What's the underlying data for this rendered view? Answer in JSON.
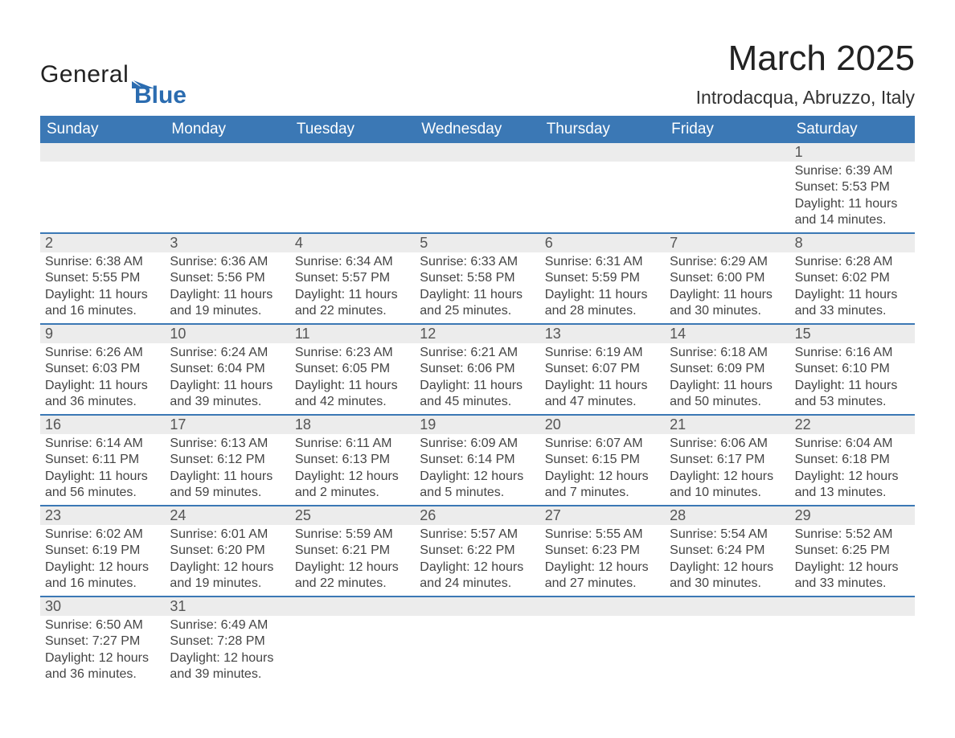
{
  "brand": {
    "word1": "General",
    "word2": "Blue",
    "flag_color": "#2b6cb0"
  },
  "title": "March 2025",
  "location": "Introdacqua, Abruzzo, Italy",
  "colors": {
    "header_bg": "#3b78b5",
    "header_text": "#ffffff",
    "daynum_bg": "#ececec",
    "row_border": "#3b78b5",
    "body_bg": "#ffffff",
    "text": "#333333",
    "brand_blue": "#2b6cb0"
  },
  "weekdays": [
    "Sunday",
    "Monday",
    "Tuesday",
    "Wednesday",
    "Thursday",
    "Friday",
    "Saturday"
  ],
  "weeks": [
    [
      {
        "num": "",
        "lines": []
      },
      {
        "num": "",
        "lines": []
      },
      {
        "num": "",
        "lines": []
      },
      {
        "num": "",
        "lines": []
      },
      {
        "num": "",
        "lines": []
      },
      {
        "num": "",
        "lines": []
      },
      {
        "num": "1",
        "lines": [
          "Sunrise: 6:39 AM",
          "Sunset: 5:53 PM",
          "Daylight: 11 hours",
          "and 14 minutes."
        ]
      }
    ],
    [
      {
        "num": "2",
        "lines": [
          "Sunrise: 6:38 AM",
          "Sunset: 5:55 PM",
          "Daylight: 11 hours",
          "and 16 minutes."
        ]
      },
      {
        "num": "3",
        "lines": [
          "Sunrise: 6:36 AM",
          "Sunset: 5:56 PM",
          "Daylight: 11 hours",
          "and 19 minutes."
        ]
      },
      {
        "num": "4",
        "lines": [
          "Sunrise: 6:34 AM",
          "Sunset: 5:57 PM",
          "Daylight: 11 hours",
          "and 22 minutes."
        ]
      },
      {
        "num": "5",
        "lines": [
          "Sunrise: 6:33 AM",
          "Sunset: 5:58 PM",
          "Daylight: 11 hours",
          "and 25 minutes."
        ]
      },
      {
        "num": "6",
        "lines": [
          "Sunrise: 6:31 AM",
          "Sunset: 5:59 PM",
          "Daylight: 11 hours",
          "and 28 minutes."
        ]
      },
      {
        "num": "7",
        "lines": [
          "Sunrise: 6:29 AM",
          "Sunset: 6:00 PM",
          "Daylight: 11 hours",
          "and 30 minutes."
        ]
      },
      {
        "num": "8",
        "lines": [
          "Sunrise: 6:28 AM",
          "Sunset: 6:02 PM",
          "Daylight: 11 hours",
          "and 33 minutes."
        ]
      }
    ],
    [
      {
        "num": "9",
        "lines": [
          "Sunrise: 6:26 AM",
          "Sunset: 6:03 PM",
          "Daylight: 11 hours",
          "and 36 minutes."
        ]
      },
      {
        "num": "10",
        "lines": [
          "Sunrise: 6:24 AM",
          "Sunset: 6:04 PM",
          "Daylight: 11 hours",
          "and 39 minutes."
        ]
      },
      {
        "num": "11",
        "lines": [
          "Sunrise: 6:23 AM",
          "Sunset: 6:05 PM",
          "Daylight: 11 hours",
          "and 42 minutes."
        ]
      },
      {
        "num": "12",
        "lines": [
          "Sunrise: 6:21 AM",
          "Sunset: 6:06 PM",
          "Daylight: 11 hours",
          "and 45 minutes."
        ]
      },
      {
        "num": "13",
        "lines": [
          "Sunrise: 6:19 AM",
          "Sunset: 6:07 PM",
          "Daylight: 11 hours",
          "and 47 minutes."
        ]
      },
      {
        "num": "14",
        "lines": [
          "Sunrise: 6:18 AM",
          "Sunset: 6:09 PM",
          "Daylight: 11 hours",
          "and 50 minutes."
        ]
      },
      {
        "num": "15",
        "lines": [
          "Sunrise: 6:16 AM",
          "Sunset: 6:10 PM",
          "Daylight: 11 hours",
          "and 53 minutes."
        ]
      }
    ],
    [
      {
        "num": "16",
        "lines": [
          "Sunrise: 6:14 AM",
          "Sunset: 6:11 PM",
          "Daylight: 11 hours",
          "and 56 minutes."
        ]
      },
      {
        "num": "17",
        "lines": [
          "Sunrise: 6:13 AM",
          "Sunset: 6:12 PM",
          "Daylight: 11 hours",
          "and 59 minutes."
        ]
      },
      {
        "num": "18",
        "lines": [
          "Sunrise: 6:11 AM",
          "Sunset: 6:13 PM",
          "Daylight: 12 hours",
          "and 2 minutes."
        ]
      },
      {
        "num": "19",
        "lines": [
          "Sunrise: 6:09 AM",
          "Sunset: 6:14 PM",
          "Daylight: 12 hours",
          "and 5 minutes."
        ]
      },
      {
        "num": "20",
        "lines": [
          "Sunrise: 6:07 AM",
          "Sunset: 6:15 PM",
          "Daylight: 12 hours",
          "and 7 minutes."
        ]
      },
      {
        "num": "21",
        "lines": [
          "Sunrise: 6:06 AM",
          "Sunset: 6:17 PM",
          "Daylight: 12 hours",
          "and 10 minutes."
        ]
      },
      {
        "num": "22",
        "lines": [
          "Sunrise: 6:04 AM",
          "Sunset: 6:18 PM",
          "Daylight: 12 hours",
          "and 13 minutes."
        ]
      }
    ],
    [
      {
        "num": "23",
        "lines": [
          "Sunrise: 6:02 AM",
          "Sunset: 6:19 PM",
          "Daylight: 12 hours",
          "and 16 minutes."
        ]
      },
      {
        "num": "24",
        "lines": [
          "Sunrise: 6:01 AM",
          "Sunset: 6:20 PM",
          "Daylight: 12 hours",
          "and 19 minutes."
        ]
      },
      {
        "num": "25",
        "lines": [
          "Sunrise: 5:59 AM",
          "Sunset: 6:21 PM",
          "Daylight: 12 hours",
          "and 22 minutes."
        ]
      },
      {
        "num": "26",
        "lines": [
          "Sunrise: 5:57 AM",
          "Sunset: 6:22 PM",
          "Daylight: 12 hours",
          "and 24 minutes."
        ]
      },
      {
        "num": "27",
        "lines": [
          "Sunrise: 5:55 AM",
          "Sunset: 6:23 PM",
          "Daylight: 12 hours",
          "and 27 minutes."
        ]
      },
      {
        "num": "28",
        "lines": [
          "Sunrise: 5:54 AM",
          "Sunset: 6:24 PM",
          "Daylight: 12 hours",
          "and 30 minutes."
        ]
      },
      {
        "num": "29",
        "lines": [
          "Sunrise: 5:52 AM",
          "Sunset: 6:25 PM",
          "Daylight: 12 hours",
          "and 33 minutes."
        ]
      }
    ],
    [
      {
        "num": "30",
        "lines": [
          "Sunrise: 6:50 AM",
          "Sunset: 7:27 PM",
          "Daylight: 12 hours",
          "and 36 minutes."
        ]
      },
      {
        "num": "31",
        "lines": [
          "Sunrise: 6:49 AM",
          "Sunset: 7:28 PM",
          "Daylight: 12 hours",
          "and 39 minutes."
        ]
      },
      {
        "num": "",
        "lines": []
      },
      {
        "num": "",
        "lines": []
      },
      {
        "num": "",
        "lines": []
      },
      {
        "num": "",
        "lines": []
      },
      {
        "num": "",
        "lines": []
      }
    ]
  ]
}
